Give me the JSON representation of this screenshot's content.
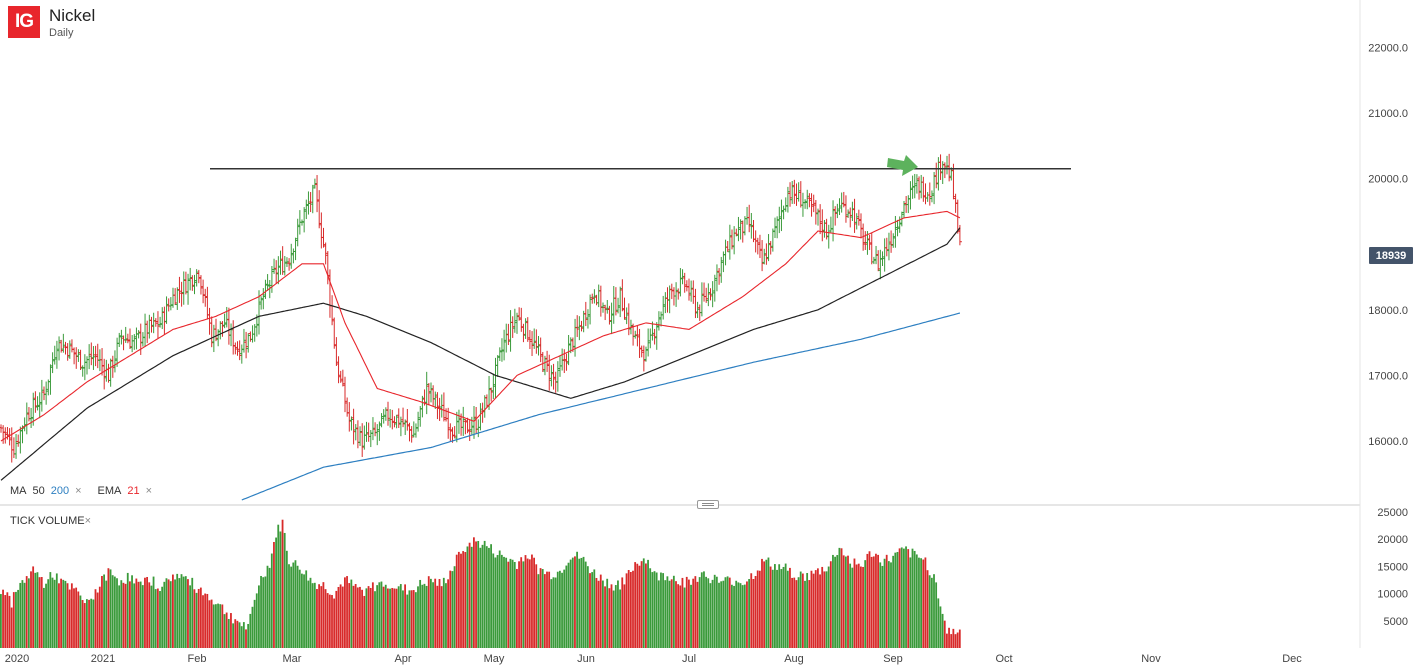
{
  "header": {
    "logo": "IG",
    "title": "Nickel",
    "subtitle": "Daily"
  },
  "last_price": "18939",
  "indicators": [
    {
      "name": "MA",
      "params": [
        "50",
        "200"
      ],
      "param_colors": [
        "#333333",
        "#2d7fc1"
      ]
    },
    {
      "name": "EMA",
      "params": [
        "21"
      ],
      "param_colors": [
        "#e8262c"
      ]
    }
  ],
  "volume_panel_title": "TICK VOLUME",
  "close_symbol": "×",
  "colors": {
    "up": "#3a9a3a",
    "down": "#d82a2a",
    "ema21": "#e8262c",
    "ma50": "#222222",
    "ma200": "#2d7fc1",
    "arrow": "#5db25d",
    "resistance": "#333333"
  },
  "chart_data": {
    "type": "bar",
    "subtype": "ohlc",
    "x_labels": [
      "2020",
      "2021",
      "Feb",
      "Mar",
      "Apr",
      "May",
      "Jun",
      "Jul",
      "Aug",
      "Sep",
      "Oct",
      "Nov",
      "Dec"
    ],
    "price_axis": {
      "ticks": [
        "22000.0",
        "21000.0",
        "20000.0",
        "18000.0",
        "17000.0",
        "16000.0"
      ],
      "range": [
        15100,
        22600
      ]
    },
    "volume_axis": {
      "ticks": [
        "25000",
        "20000",
        "15000",
        "10000",
        "5000"
      ],
      "range": [
        0,
        25000
      ]
    },
    "resistance_level": 20150,
    "price_anchors": [
      [
        0,
        16200
      ],
      [
        6,
        15900
      ],
      [
        12,
        16400
      ],
      [
        20,
        16700
      ],
      [
        26,
        17500
      ],
      [
        32,
        17400
      ],
      [
        38,
        17200
      ],
      [
        44,
        17300
      ],
      [
        50,
        17000
      ],
      [
        56,
        17600
      ],
      [
        62,
        17500
      ],
      [
        68,
        17700
      ],
      [
        74,
        17800
      ],
      [
        80,
        18200
      ],
      [
        86,
        18400
      ],
      [
        92,
        18600
      ],
      [
        98,
        17600
      ],
      [
        104,
        17800
      ],
      [
        110,
        17400
      ],
      [
        116,
        17600
      ],
      [
        122,
        18200
      ],
      [
        128,
        18600
      ],
      [
        134,
        18800
      ],
      [
        140,
        19400
      ],
      [
        146,
        19800
      ],
      [
        151,
        18800
      ],
      [
        156,
        17200
      ],
      [
        162,
        16300
      ],
      [
        168,
        16000
      ],
      [
        174,
        16100
      ],
      [
        180,
        16400
      ],
      [
        186,
        16300
      ],
      [
        192,
        16100
      ],
      [
        198,
        16800
      ],
      [
        204,
        16500
      ],
      [
        210,
        16200
      ],
      [
        216,
        16200
      ],
      [
        222,
        16300
      ],
      [
        228,
        16800
      ],
      [
        234,
        17500
      ],
      [
        240,
        17900
      ],
      [
        246,
        17600
      ],
      [
        252,
        17200
      ],
      [
        258,
        16900
      ],
      [
        264,
        17400
      ],
      [
        270,
        17800
      ],
      [
        276,
        18300
      ],
      [
        282,
        17900
      ],
      [
        288,
        18200
      ],
      [
        294,
        17600
      ],
      [
        300,
        17300
      ],
      [
        306,
        17900
      ],
      [
        312,
        18300
      ],
      [
        318,
        18400
      ],
      [
        324,
        18000
      ],
      [
        330,
        18300
      ],
      [
        336,
        18800
      ],
      [
        342,
        19200
      ],
      [
        348,
        19300
      ],
      [
        354,
        18700
      ],
      [
        360,
        19200
      ],
      [
        366,
        19800
      ],
      [
        372,
        19700
      ],
      [
        378,
        19500
      ],
      [
        384,
        19200
      ],
      [
        390,
        19600
      ],
      [
        396,
        19500
      ],
      [
        402,
        19000
      ],
      [
        408,
        18700
      ],
      [
        414,
        19100
      ],
      [
        420,
        19600
      ],
      [
        426,
        19900
      ],
      [
        432,
        19800
      ],
      [
        438,
        20300
      ],
      [
        442,
        20000
      ],
      [
        444,
        19500
      ],
      [
        446,
        18939
      ]
    ],
    "volume_anchors": [
      [
        0,
        11000
      ],
      [
        5,
        8500
      ],
      [
        10,
        12000
      ],
      [
        15,
        14500
      ],
      [
        20,
        12000
      ],
      [
        25,
        13500
      ],
      [
        30,
        11500
      ],
      [
        35,
        10500
      ],
      [
        40,
        8000
      ],
      [
        45,
        11000
      ],
      [
        50,
        14000
      ],
      [
        55,
        12500
      ],
      [
        60,
        13000
      ],
      [
        65,
        11500
      ],
      [
        70,
        12500
      ],
      [
        75,
        11000
      ],
      [
        80,
        13500
      ],
      [
        85,
        13000
      ],
      [
        90,
        11500
      ],
      [
        95,
        10000
      ],
      [
        100,
        8500
      ],
      [
        105,
        6500
      ],
      [
        110,
        5000
      ],
      [
        115,
        3500
      ],
      [
        120,
        12000
      ],
      [
        125,
        15500
      ],
      [
        128,
        21000
      ],
      [
        131,
        23000
      ],
      [
        134,
        16000
      ],
      [
        140,
        14500
      ],
      [
        145,
        12000
      ],
      [
        150,
        11500
      ],
      [
        155,
        10000
      ],
      [
        160,
        12500
      ],
      [
        165,
        11000
      ],
      [
        170,
        10500
      ],
      [
        175,
        11500
      ],
      [
        180,
        12000
      ],
      [
        185,
        11000
      ],
      [
        190,
        10500
      ],
      [
        195,
        11500
      ],
      [
        200,
        12500
      ],
      [
        205,
        11500
      ],
      [
        210,
        14500
      ],
      [
        215,
        18500
      ],
      [
        220,
        19500
      ],
      [
        225,
        19000
      ],
      [
        230,
        17500
      ],
      [
        235,
        16500
      ],
      [
        240,
        15500
      ],
      [
        245,
        17500
      ],
      [
        250,
        14500
      ],
      [
        255,
        13500
      ],
      [
        260,
        14000
      ],
      [
        265,
        17000
      ],
      [
        270,
        16500
      ],
      [
        275,
        14000
      ],
      [
        280,
        12500
      ],
      [
        285,
        11500
      ],
      [
        290,
        12000
      ],
      [
        295,
        15500
      ],
      [
        300,
        16500
      ],
      [
        305,
        13000
      ],
      [
        310,
        13500
      ],
      [
        315,
        12500
      ],
      [
        320,
        12000
      ],
      [
        325,
        13500
      ],
      [
        330,
        13000
      ],
      [
        335,
        12000
      ],
      [
        340,
        12500
      ],
      [
        345,
        12000
      ],
      [
        350,
        13500
      ],
      [
        355,
        16000
      ],
      [
        360,
        15000
      ],
      [
        365,
        14500
      ],
      [
        370,
        13500
      ],
      [
        375,
        13000
      ],
      [
        380,
        14000
      ],
      [
        385,
        15000
      ],
      [
        390,
        18500
      ],
      [
        395,
        16000
      ],
      [
        400,
        15000
      ],
      [
        405,
        17500
      ],
      [
        410,
        16000
      ],
      [
        415,
        16500
      ],
      [
        420,
        18000
      ],
      [
        425,
        17000
      ],
      [
        430,
        16000
      ],
      [
        435,
        12000
      ],
      [
        440,
        3000
      ],
      [
        446,
        3000
      ]
    ],
    "series": [
      {
        "name": "MA 50",
        "anchors": [
          [
            0,
            15400
          ],
          [
            40,
            16500
          ],
          [
            80,
            17300
          ],
          [
            120,
            17900
          ],
          [
            150,
            18100
          ],
          [
            170,
            17900
          ],
          [
            200,
            17500
          ],
          [
            230,
            17000
          ],
          [
            265,
            16650
          ],
          [
            290,
            16900
          ],
          [
            320,
            17300
          ],
          [
            350,
            17700
          ],
          [
            380,
            18000
          ],
          [
            410,
            18500
          ],
          [
            440,
            19000
          ],
          [
            446,
            19250
          ]
        ]
      },
      {
        "name": "MA 200",
        "anchors": [
          [
            112,
            15100
          ],
          [
            150,
            15600
          ],
          [
            200,
            15900
          ],
          [
            250,
            16400
          ],
          [
            300,
            16800
          ],
          [
            350,
            17200
          ],
          [
            400,
            17550
          ],
          [
            446,
            17950
          ]
        ]
      },
      {
        "name": "EMA 21",
        "anchors": [
          [
            0,
            16000
          ],
          [
            20,
            16400
          ],
          [
            40,
            16900
          ],
          [
            60,
            17300
          ],
          [
            80,
            17700
          ],
          [
            100,
            17900
          ],
          [
            120,
            18200
          ],
          [
            140,
            18700
          ],
          [
            150,
            18700
          ],
          [
            160,
            17800
          ],
          [
            175,
            16800
          ],
          [
            195,
            16600
          ],
          [
            220,
            16300
          ],
          [
            240,
            17000
          ],
          [
            260,
            17300
          ],
          [
            280,
            17600
          ],
          [
            300,
            17800
          ],
          [
            320,
            17700
          ],
          [
            345,
            18200
          ],
          [
            365,
            18700
          ],
          [
            380,
            19200
          ],
          [
            400,
            19100
          ],
          [
            420,
            19400
          ],
          [
            440,
            19500
          ],
          [
            446,
            19400
          ]
        ]
      }
    ]
  }
}
